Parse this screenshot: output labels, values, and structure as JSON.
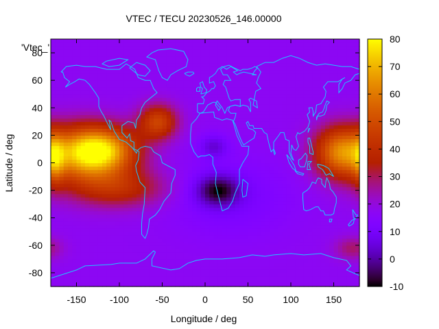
{
  "chart_data": {
    "type": "heatmap",
    "title": "VTEC / TECU 20230526_146.00000",
    "xlabel": "Longitude / deg",
    "ylabel": "Latitude / deg",
    "xlim": [
      -180,
      180
    ],
    "ylim": [
      -90,
      90
    ],
    "x_ticks": [
      -150,
      -100,
      -50,
      0,
      50,
      100,
      150
    ],
    "y_ticks": [
      -80,
      -60,
      -40,
      -20,
      0,
      20,
      40,
      60,
      80
    ],
    "colorbar": {
      "range": [
        -10,
        80
      ],
      "ticks": [
        -10,
        0,
        10,
        20,
        30,
        40,
        50,
        60,
        70,
        80
      ]
    },
    "key_label": "'Vtec_'",
    "background_level": 17,
    "features": [
      {
        "lon": -122,
        "lat": 9,
        "sigma_lon": 30,
        "sigma_lat": 12,
        "peak": 54
      },
      {
        "lon": -150,
        "lat": 5,
        "sigma_lon": 30,
        "sigma_lat": 16,
        "peak": 24
      },
      {
        "lon": -100,
        "lat": -18,
        "sigma_lon": 38,
        "sigma_lat": 10,
        "peak": 22
      },
      {
        "lon": -55,
        "lat": 30,
        "sigma_lon": 16,
        "sigma_lat": 9,
        "peak": 30
      },
      {
        "lon": 158,
        "lat": 8,
        "sigma_lon": 22,
        "sigma_lat": 13,
        "peak": 42
      },
      {
        "lon": -175,
        "lat": 2,
        "sigma_lon": 8,
        "sigma_lat": 13,
        "peak": 20
      },
      {
        "lon": 172,
        "lat": -62,
        "sigma_lon": 15,
        "sigma_lat": 6,
        "peak": 12
      },
      {
        "lon": 15,
        "lat": -20,
        "sigma_lon": 18,
        "sigma_lat": 8,
        "peak": -22
      },
      {
        "lon": 10,
        "lat": 12,
        "sigma_lon": 12,
        "sigma_lat": 6,
        "peak": -12
      },
      {
        "lon": 30,
        "lat": -25,
        "sigma_lon": 50,
        "sigma_lat": 20,
        "peak": -6
      }
    ]
  }
}
